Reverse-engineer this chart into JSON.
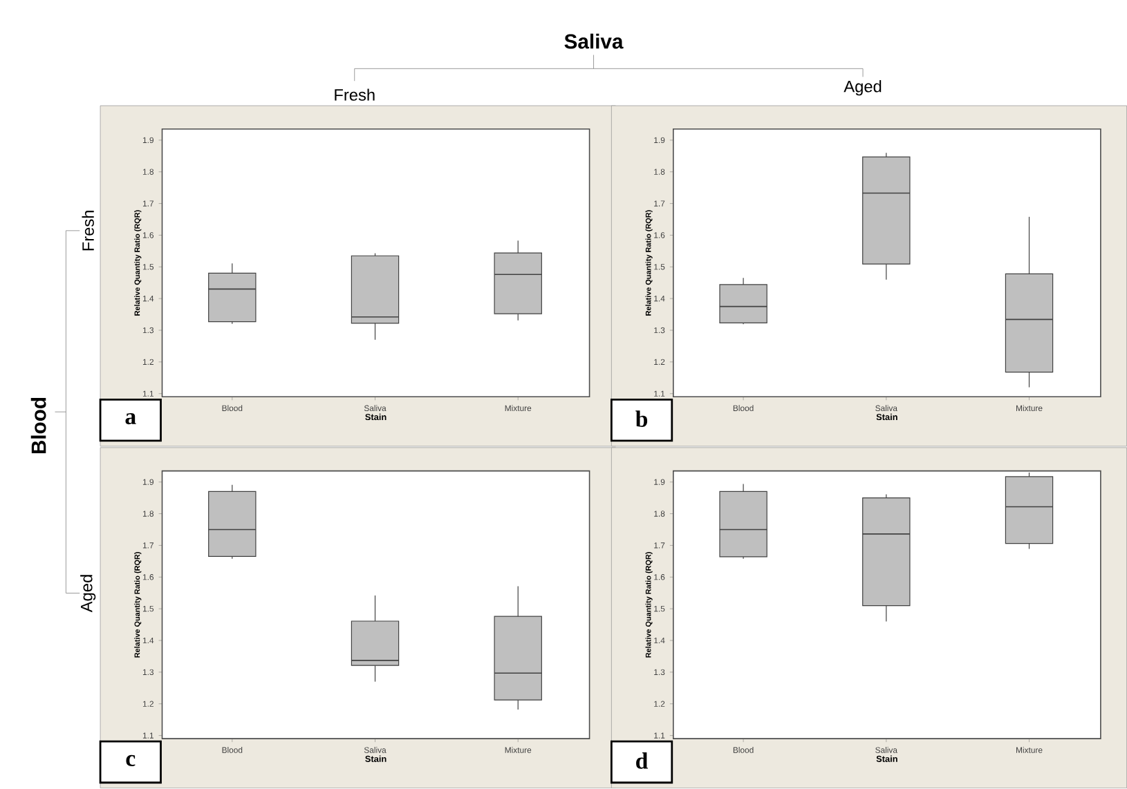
{
  "chart_data": [
    {
      "type": "box",
      "title": "a",
      "annotations": [
        "Saliva",
        "Fresh",
        "Aged",
        "Blood",
        "Fresh",
        "Aged"
      ],
      "categories": [
        "Blood",
        "Saliva",
        "Mixture"
      ],
      "xlabel": "Stain",
      "ylabel": "Relative Quantity Ratio (RQR)",
      "ylim": [
        1.09,
        1.935
      ],
      "yticks": [
        1.1,
        1.2,
        1.3,
        1.4,
        1.5,
        1.6,
        1.7,
        1.8,
        1.9
      ],
      "boxes": [
        {
          "low": 1.32,
          "q1": 1.327,
          "median": 1.43,
          "q3": 1.48,
          "high": 1.511
        },
        {
          "low": 1.27,
          "q1": 1.322,
          "median": 1.342,
          "q3": 1.535,
          "high": 1.543
        },
        {
          "low": 1.331,
          "q1": 1.352,
          "median": 1.476,
          "q3": 1.544,
          "high": 1.583
        }
      ]
    },
    {
      "type": "box",
      "title": "b",
      "categories": [
        "Blood",
        "Saliva",
        "Mixture"
      ],
      "xlabel": "Stain",
      "ylabel": "Relative Quantity Ratio (RQR)",
      "ylim": [
        1.09,
        1.935
      ],
      "yticks": [
        1.1,
        1.2,
        1.3,
        1.4,
        1.5,
        1.6,
        1.7,
        1.8,
        1.9
      ],
      "boxes": [
        {
          "low": 1.319,
          "q1": 1.323,
          "median": 1.375,
          "q3": 1.444,
          "high": 1.465
        },
        {
          "low": 1.46,
          "q1": 1.509,
          "median": 1.733,
          "q3": 1.847,
          "high": 1.86
        },
        {
          "low": 1.12,
          "q1": 1.168,
          "median": 1.334,
          "q3": 1.478,
          "high": 1.658
        }
      ]
    },
    {
      "type": "box",
      "title": "c",
      "categories": [
        "Blood",
        "Saliva",
        "Mixture"
      ],
      "xlabel": "Stain",
      "ylabel": "Relative Quantity Ratio (RQR)",
      "ylim": [
        1.09,
        1.935
      ],
      "yticks": [
        1.1,
        1.2,
        1.3,
        1.4,
        1.5,
        1.6,
        1.7,
        1.8,
        1.9
      ],
      "boxes": [
        {
          "low": 1.658,
          "q1": 1.665,
          "median": 1.75,
          "q3": 1.87,
          "high": 1.891
        },
        {
          "low": 1.27,
          "q1": 1.321,
          "median": 1.337,
          "q3": 1.461,
          "high": 1.542
        },
        {
          "low": 1.182,
          "q1": 1.212,
          "median": 1.297,
          "q3": 1.476,
          "high": 1.571
        }
      ]
    },
    {
      "type": "box",
      "title": "d",
      "categories": [
        "Blood",
        "Saliva",
        "Mixture"
      ],
      "xlabel": "Stain",
      "ylabel": "Relative Quantity Ratio (RQR)",
      "ylim": [
        1.09,
        1.935
      ],
      "yticks": [
        1.1,
        1.2,
        1.3,
        1.4,
        1.5,
        1.6,
        1.7,
        1.8,
        1.9
      ],
      "boxes": [
        {
          "low": 1.658,
          "q1": 1.664,
          "median": 1.75,
          "q3": 1.87,
          "high": 1.894
        },
        {
          "low": 1.46,
          "q1": 1.51,
          "median": 1.736,
          "q3": 1.85,
          "high": 1.861
        },
        {
          "low": 1.689,
          "q1": 1.706,
          "median": 1.822,
          "q3": 1.917,
          "high": 1.93
        }
      ]
    }
  ]
}
